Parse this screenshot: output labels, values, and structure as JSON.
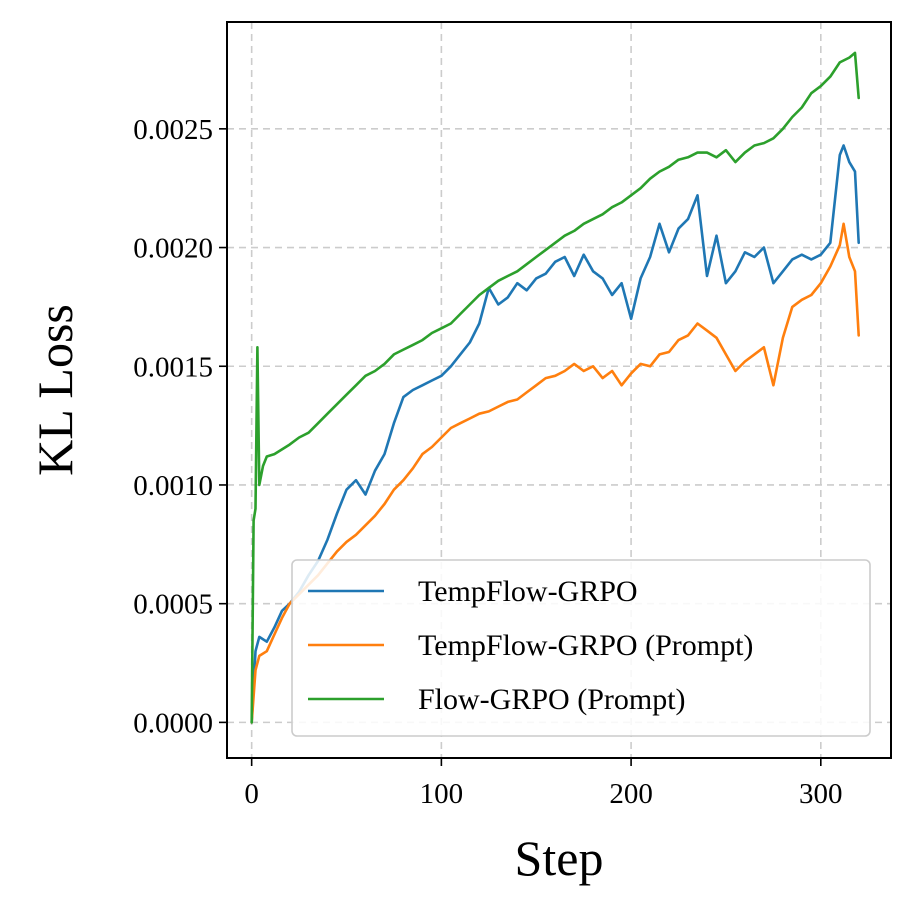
{
  "chart_data": {
    "type": "line",
    "title": "",
    "xlabel": "Step",
    "ylabel": "KL Loss",
    "xlim": [
      -13,
      337
    ],
    "ylim": [
      -0.00015,
      0.00295
    ],
    "xticks": [
      0,
      100,
      200,
      300
    ],
    "xtick_labels": [
      "0",
      "100",
      "200",
      "300"
    ],
    "yticks": [
      0.0,
      0.0005,
      0.001,
      0.0015,
      0.002,
      0.0025
    ],
    "ytick_labels": [
      "0.0000",
      "0.0005",
      "0.0010",
      "0.0015",
      "0.0020",
      "0.0025"
    ],
    "grid": true,
    "legend_position": "lower-right",
    "series": [
      {
        "name": "TempFlow-GRPO",
        "color": "#1f77b4",
        "x": [
          0,
          2,
          4,
          8,
          12,
          16,
          20,
          25,
          30,
          35,
          40,
          45,
          50,
          55,
          60,
          65,
          70,
          75,
          80,
          85,
          90,
          95,
          100,
          105,
          110,
          115,
          120,
          125,
          130,
          135,
          140,
          145,
          150,
          155,
          160,
          165,
          170,
          175,
          180,
          185,
          190,
          195,
          200,
          205,
          210,
          215,
          220,
          225,
          230,
          235,
          240,
          245,
          250,
          255,
          260,
          265,
          270,
          275,
          280,
          285,
          290,
          295,
          300,
          305,
          310,
          312,
          315,
          318,
          320
        ],
        "y": [
          0.0,
          0.0003,
          0.00036,
          0.00034,
          0.0004,
          0.00047,
          0.0005,
          0.00055,
          0.00062,
          0.00068,
          0.00077,
          0.00088,
          0.00098,
          0.00102,
          0.00096,
          0.00106,
          0.00113,
          0.00126,
          0.00137,
          0.0014,
          0.00142,
          0.00144,
          0.00146,
          0.0015,
          0.00155,
          0.0016,
          0.00168,
          0.00183,
          0.00176,
          0.00179,
          0.00185,
          0.00182,
          0.00187,
          0.00189,
          0.00194,
          0.00196,
          0.00188,
          0.00197,
          0.0019,
          0.00187,
          0.0018,
          0.00185,
          0.0017,
          0.00187,
          0.00196,
          0.0021,
          0.00198,
          0.00208,
          0.00212,
          0.00222,
          0.00188,
          0.00205,
          0.00185,
          0.0019,
          0.00198,
          0.00196,
          0.002,
          0.00185,
          0.0019,
          0.00195,
          0.00197,
          0.00195,
          0.00197,
          0.00202,
          0.00239,
          0.00243,
          0.00236,
          0.00232,
          0.00202
        ]
      },
      {
        "name": "TempFlow-GRPO (Prompt)",
        "color": "#ff7f0e",
        "x": [
          0,
          2,
          4,
          8,
          12,
          16,
          20,
          25,
          30,
          35,
          40,
          45,
          50,
          55,
          60,
          65,
          70,
          75,
          80,
          85,
          90,
          95,
          100,
          105,
          110,
          115,
          120,
          125,
          130,
          135,
          140,
          145,
          150,
          155,
          160,
          165,
          170,
          175,
          180,
          185,
          190,
          195,
          200,
          205,
          210,
          215,
          220,
          225,
          230,
          235,
          240,
          245,
          250,
          255,
          260,
          265,
          270,
          275,
          280,
          285,
          290,
          295,
          300,
          305,
          310,
          312,
          315,
          318,
          320
        ],
        "y": [
          0.0,
          0.00022,
          0.00028,
          0.0003,
          0.00037,
          0.00044,
          0.0005,
          0.00054,
          0.00058,
          0.00062,
          0.00067,
          0.00072,
          0.00076,
          0.00079,
          0.00083,
          0.00087,
          0.00092,
          0.00098,
          0.00102,
          0.00107,
          0.00113,
          0.00116,
          0.0012,
          0.00124,
          0.00126,
          0.00128,
          0.0013,
          0.00131,
          0.00133,
          0.00135,
          0.00136,
          0.00139,
          0.00142,
          0.00145,
          0.00146,
          0.00148,
          0.00151,
          0.00148,
          0.0015,
          0.00145,
          0.00148,
          0.00142,
          0.00147,
          0.00151,
          0.0015,
          0.00155,
          0.00156,
          0.00161,
          0.00163,
          0.00168,
          0.00165,
          0.00162,
          0.00155,
          0.00148,
          0.00152,
          0.00155,
          0.00158,
          0.00142,
          0.00162,
          0.00175,
          0.00178,
          0.0018,
          0.00185,
          0.00192,
          0.00201,
          0.0021,
          0.00196,
          0.0019,
          0.00163
        ]
      },
      {
        "name": "Flow-GRPO (Prompt)",
        "color": "#2ca02c",
        "x": [
          0,
          1,
          2,
          3,
          4,
          6,
          8,
          12,
          16,
          20,
          25,
          30,
          35,
          40,
          45,
          50,
          55,
          60,
          65,
          70,
          75,
          80,
          85,
          90,
          95,
          100,
          105,
          110,
          115,
          120,
          125,
          130,
          135,
          140,
          145,
          150,
          155,
          160,
          165,
          170,
          175,
          180,
          185,
          190,
          195,
          200,
          205,
          210,
          215,
          220,
          225,
          230,
          235,
          240,
          245,
          250,
          255,
          260,
          265,
          270,
          275,
          280,
          285,
          290,
          295,
          300,
          305,
          310,
          315,
          318,
          320
        ],
        "y": [
          0.0,
          0.00085,
          0.0009,
          0.00158,
          0.001,
          0.00108,
          0.00112,
          0.00113,
          0.00115,
          0.00117,
          0.0012,
          0.00122,
          0.00126,
          0.0013,
          0.00134,
          0.00138,
          0.00142,
          0.00146,
          0.00148,
          0.00151,
          0.00155,
          0.00157,
          0.00159,
          0.00161,
          0.00164,
          0.00166,
          0.00168,
          0.00172,
          0.00176,
          0.0018,
          0.00183,
          0.00186,
          0.00188,
          0.0019,
          0.00193,
          0.00196,
          0.00199,
          0.00202,
          0.00205,
          0.00207,
          0.0021,
          0.00212,
          0.00214,
          0.00217,
          0.00219,
          0.00222,
          0.00225,
          0.00229,
          0.00232,
          0.00234,
          0.00237,
          0.00238,
          0.0024,
          0.0024,
          0.00238,
          0.00241,
          0.00236,
          0.0024,
          0.00243,
          0.00244,
          0.00246,
          0.0025,
          0.00255,
          0.00259,
          0.00265,
          0.00268,
          0.00272,
          0.00278,
          0.0028,
          0.00282,
          0.00263
        ]
      }
    ]
  }
}
